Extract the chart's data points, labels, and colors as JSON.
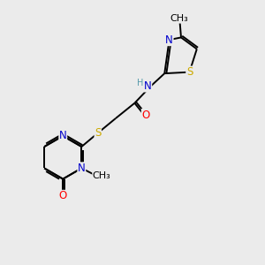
{
  "bg_color": "#ebebeb",
  "atom_colors": {
    "C": "#000000",
    "N": "#0000cc",
    "O": "#ff0000",
    "S": "#ccaa00",
    "H": "#5599aa"
  },
  "bond_color": "#000000",
  "lw": 1.4,
  "fs": 8.5
}
